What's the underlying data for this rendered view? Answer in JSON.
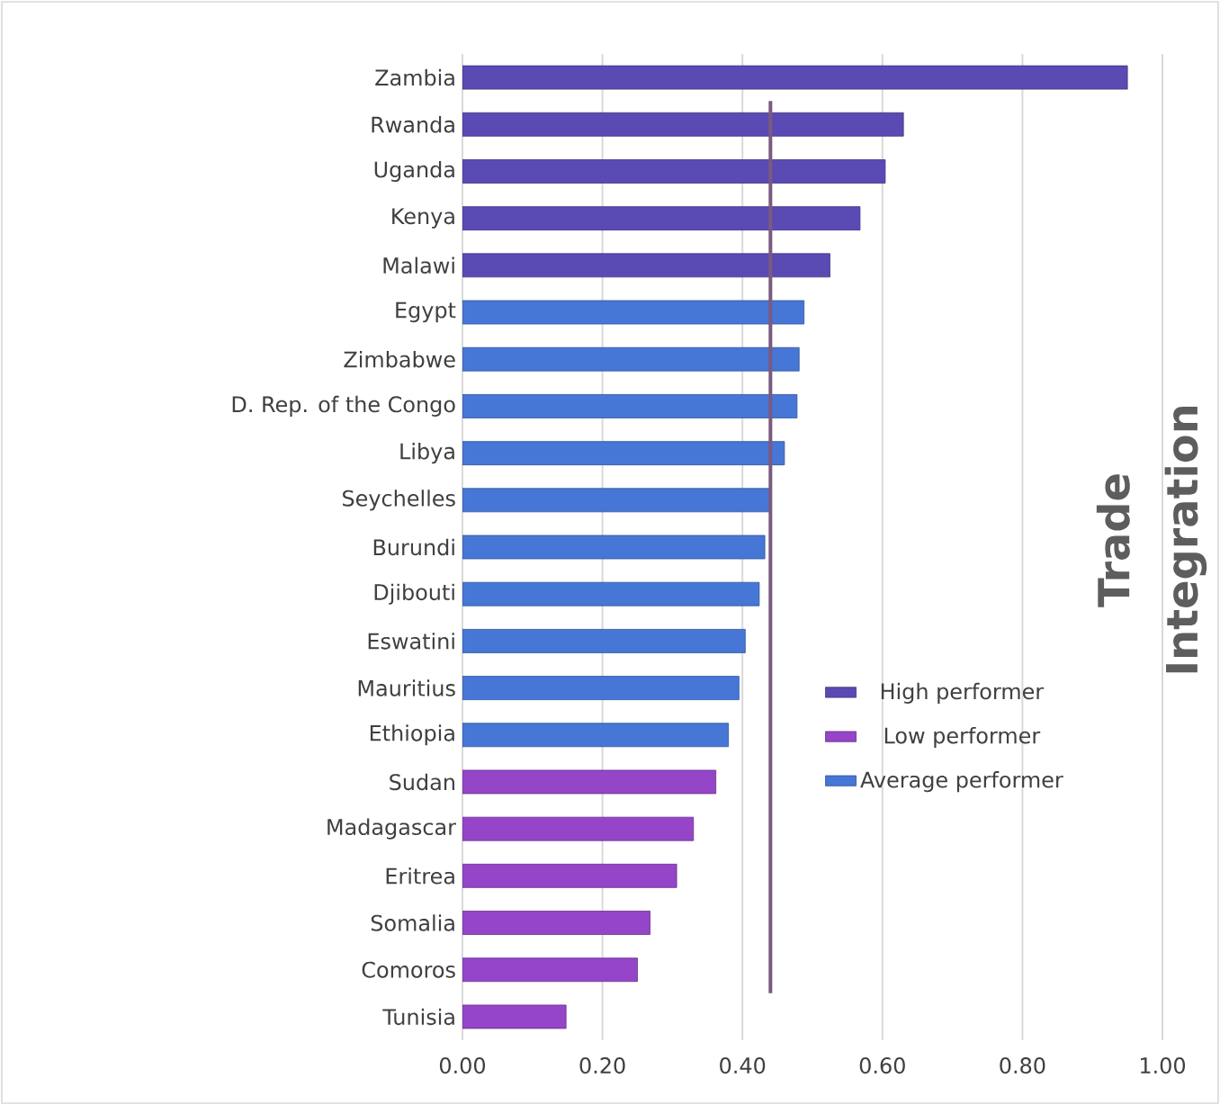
{
  "chart_data": {
    "type": "bar",
    "orientation": "horizontal",
    "title": "Trade Integration",
    "categories": [
      "Zambia",
      "Rwanda",
      "Uganda",
      "Kenya",
      "Malawi",
      "Egypt",
      "Zimbabwe",
      "D. Rep. of the Congo",
      "Libya",
      "Seychelles",
      "Burundi",
      "Djibouti",
      "Eswatini",
      "Mauritius",
      "Ethiopia",
      "Sudan",
      "Madagascar",
      "Eritrea",
      "Somalia",
      "Comoros",
      "Tunisia"
    ],
    "series": [
      {
        "name": "High performer",
        "color": "#5a4ab4",
        "values": [
          0.95,
          0.63,
          0.604,
          0.568,
          0.525,
          null,
          null,
          null,
          null,
          null,
          null,
          null,
          null,
          null,
          null,
          null,
          null,
          null,
          null,
          null,
          null
        ]
      },
      {
        "name": "Low performer",
        "color": "#9545c8",
        "values": [
          null,
          null,
          null,
          null,
          null,
          null,
          null,
          null,
          null,
          null,
          null,
          null,
          null,
          null,
          null,
          0.362,
          0.33,
          0.306,
          0.268,
          0.25,
          0.148
        ]
      },
      {
        "name": "Average performer",
        "color": "#4677d6",
        "values": [
          null,
          null,
          null,
          null,
          null,
          0.488,
          0.481,
          0.478,
          0.46,
          0.441,
          0.432,
          0.424,
          0.404,
          0.395,
          0.38,
          null,
          null,
          null,
          null,
          null,
          null
        ]
      }
    ],
    "xlim": [
      0,
      1
    ],
    "xticks": [
      {
        "value": 0,
        "label": "0.00"
      },
      {
        "value": 0.2,
        "label": "0.20"
      },
      {
        "value": 0.4,
        "label": "0.40"
      },
      {
        "value": 0.6,
        "label": "0.60"
      },
      {
        "value": 0.8,
        "label": "0.80"
      },
      {
        "value": 1,
        "label": "1.00"
      }
    ],
    "grid": "x",
    "legend": "right",
    "ref_lines": [
      {
        "axis": "x",
        "value": 0.44,
        "color": "#7a5a80"
      }
    ]
  }
}
